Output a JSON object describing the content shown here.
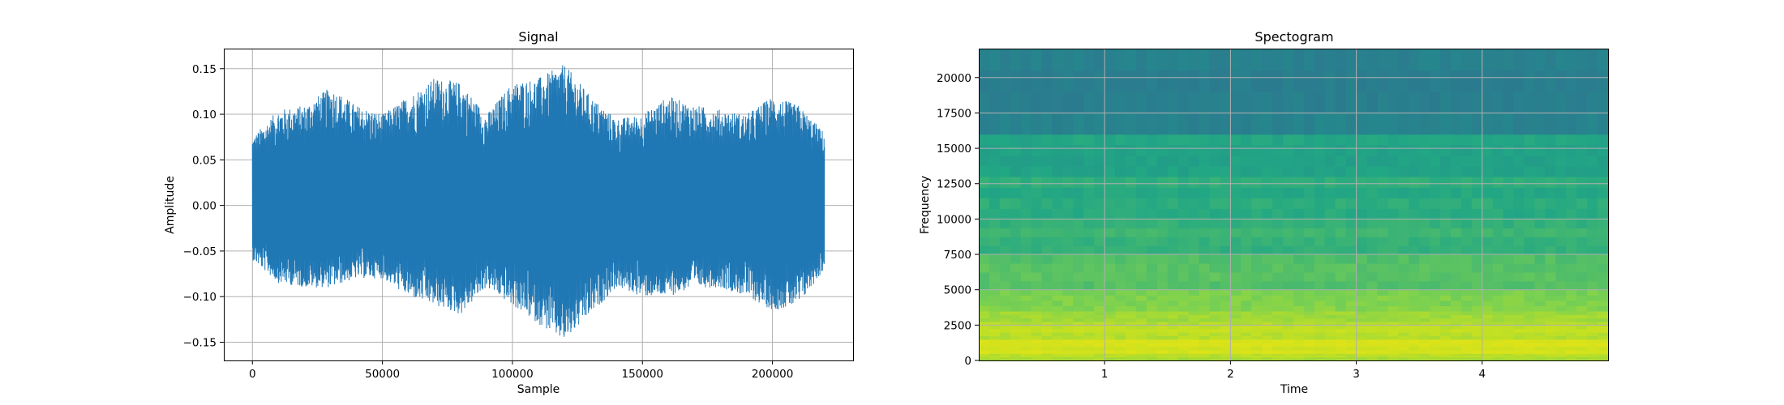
{
  "chart_data": [
    {
      "type": "line",
      "title": "Signal",
      "xlabel": "Sample",
      "ylabel": "Amplitude",
      "xlim": [
        -11000,
        231000
      ],
      "ylim": [
        -0.17,
        0.172
      ],
      "x_ticks": [
        0,
        50000,
        100000,
        150000,
        200000
      ],
      "x_tick_labels": [
        "0",
        "50000",
        "100000",
        "150000",
        "200000"
      ],
      "y_ticks": [
        -0.15,
        -0.1,
        -0.05,
        0.0,
        0.05,
        0.1,
        0.15
      ],
      "y_tick_labels": [
        "−0.15",
        "−0.10",
        "−0.05",
        "0.00",
        "0.05",
        "0.10",
        "0.15"
      ],
      "grid": true,
      "line_color": "#1f77b4",
      "series": [
        {
          "x": [
            0,
            10000,
            20000,
            30000,
            40000,
            50000,
            60000,
            70000,
            80000,
            90000,
            100000,
            110000,
            120000,
            130000,
            140000,
            150000,
            160000,
            170000,
            180000,
            190000,
            200000,
            210000,
            220000
          ],
          "upper": [
            0.075,
            0.105,
            0.11,
            0.13,
            0.11,
            0.1,
            0.12,
            0.14,
            0.135,
            0.1,
            0.135,
            0.14,
            0.155,
            0.12,
            0.095,
            0.1,
            0.12,
            0.11,
            0.105,
            0.1,
            0.12,
            0.11,
            0.08
          ],
          "lower": [
            -0.06,
            -0.085,
            -0.09,
            -0.09,
            -0.08,
            -0.08,
            -0.1,
            -0.11,
            -0.12,
            -0.09,
            -0.11,
            -0.13,
            -0.15,
            -0.12,
            -0.09,
            -0.1,
            -0.1,
            -0.09,
            -0.09,
            -0.1,
            -0.115,
            -0.11,
            -0.07
          ]
        }
      ]
    },
    {
      "type": "heatmap",
      "title": "Spectogram",
      "xlabel": "Time",
      "ylabel": "Frequency",
      "xlim": [
        0,
        5.0
      ],
      "ylim": [
        0,
        22050
      ],
      "x_ticks": [
        1,
        2,
        3,
        4
      ],
      "x_tick_labels": [
        "1",
        "2",
        "3",
        "4"
      ],
      "y_ticks": [
        0,
        2500,
        5000,
        7500,
        10000,
        12500,
        15000,
        17500,
        20000
      ],
      "y_tick_labels": [
        "0",
        "2500",
        "5000",
        "7500",
        "10000",
        "12500",
        "15000",
        "17500",
        "20000"
      ],
      "grid": true,
      "colormap": "viridis",
      "colormap_stops": [
        "#2b7b8e",
        "#21918c",
        "#22a784",
        "#47b96e",
        "#7ad151",
        "#bddf26",
        "#dde318"
      ],
      "frequency_bands": [
        {
          "from": 0,
          "to": 500,
          "level": 0.8
        },
        {
          "from": 500,
          "to": 1500,
          "level": 0.95
        },
        {
          "from": 1500,
          "to": 2500,
          "level": 0.85
        },
        {
          "from": 2500,
          "to": 3500,
          "level": 0.78
        },
        {
          "from": 3500,
          "to": 5000,
          "level": 0.68
        },
        {
          "from": 5000,
          "to": 7500,
          "level": 0.55
        },
        {
          "from": 7500,
          "to": 10000,
          "level": 0.45
        },
        {
          "from": 10000,
          "to": 13000,
          "level": 0.36
        },
        {
          "from": 13000,
          "to": 16000,
          "level": 0.3
        },
        {
          "from": 16000,
          "to": 22050,
          "level": 0.05
        }
      ]
    }
  ]
}
